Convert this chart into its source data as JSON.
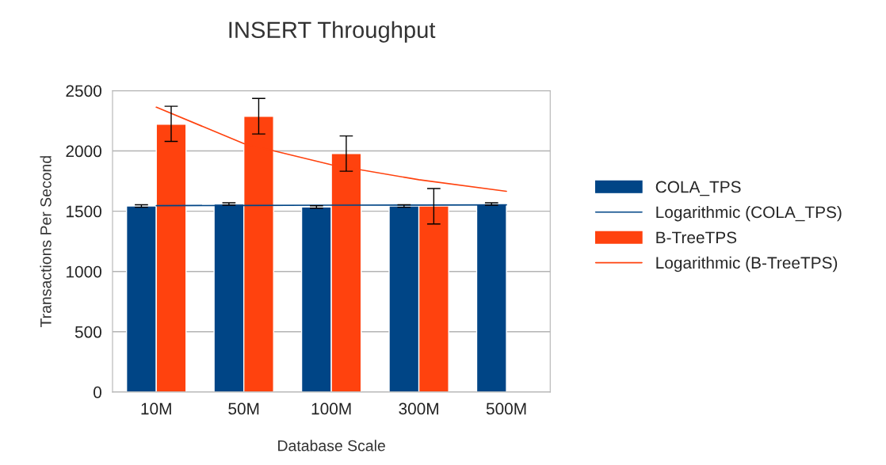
{
  "chart_data": {
    "type": "bar",
    "title": "INSERT Throughput",
    "xlabel": "Database Scale",
    "ylabel": "Transactions Per Second",
    "categories": [
      "10M",
      "50M",
      "100M",
      "300M",
      "500M"
    ],
    "series": [
      {
        "name": "COLA_TPS",
        "color": "#004586",
        "values": [
          1543,
          1560,
          1535,
          1543,
          1560
        ],
        "errors": [
          10,
          10,
          10,
          10,
          10
        ]
      },
      {
        "name": "Logarithmic (COLA_TPS)",
        "type": "line",
        "color": "#004586",
        "values": [
          1546,
          1548,
          1550,
          1551,
          1553
        ]
      },
      {
        "name": "B-TreeTPS",
        "color": "#ff420e",
        "values": [
          2222,
          2288,
          1978,
          1543,
          null
        ],
        "errors": [
          [
            2079,
            2371
          ],
          [
            2141,
            2436
          ],
          [
            1832,
            2124
          ],
          [
            1394,
            1688
          ],
          null
        ]
      },
      {
        "name": "Logarithmic (B-TreeTPS)",
        "type": "line",
        "color": "#ff420e",
        "values": [
          2363,
          2061,
          1885,
          1761,
          1665
        ]
      }
    ],
    "ylim": [
      0,
      2500
    ],
    "yticks": [
      0,
      500,
      1000,
      1500,
      2000,
      2500
    ],
    "grid": "y",
    "legend": "right"
  }
}
